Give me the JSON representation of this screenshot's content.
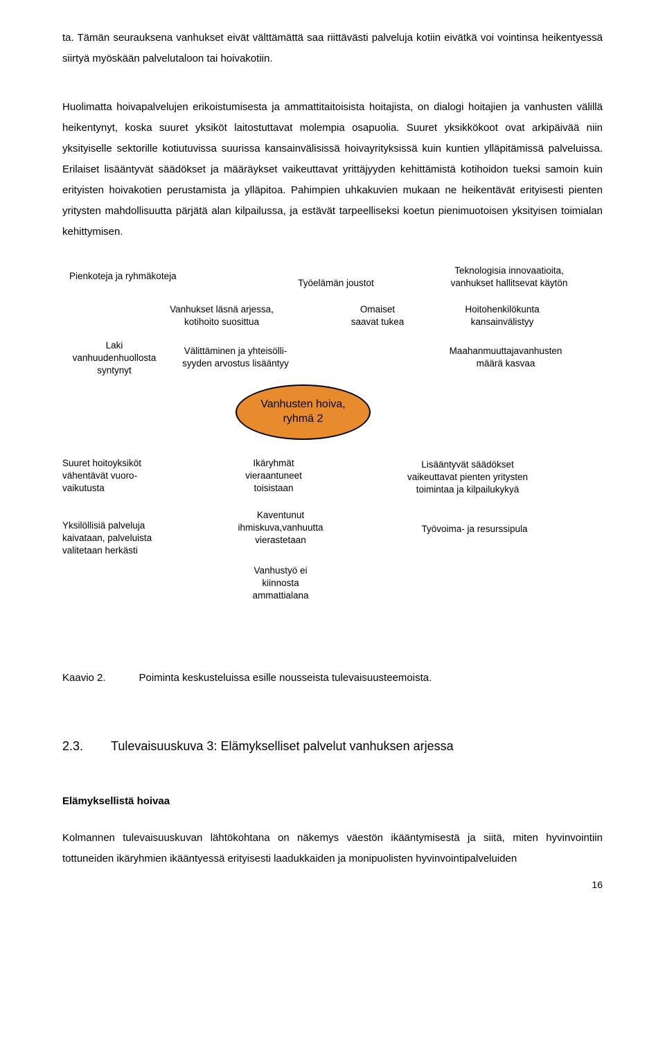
{
  "paragraph1": "ta. Tämän seurauksena vanhukset eivät välttämättä saa riittävästi palveluja kotiin eivätkä voi vointinsa heikentyessä siirtyä myöskään palvelutaloon tai hoivakotiin.",
  "paragraph2": "Huolimatta hoivapalvelujen erikoistumisesta ja ammattitaitoisista hoitajista, on dialogi hoitajien ja vanhusten välillä heikentynyt, koska suuret yksiköt laitostuttavat molempia osapuolia. Suuret yksikkökoot ovat arkipäivää niin yksityiselle sektorille kotiutuvissa suurissa kansainvälisissä hoivayrityksissä kuin kuntien ylläpitämissä palveluissa. Erilaiset lisääntyvät säädökset ja määräykset vaikeuttavat yrittäjyyden kehittämistä kotihoidon tueksi samoin kuin erityisten hoivakotien perustamista ja ylläpitoa. Pahimpien uhkakuvien mukaan ne heikentävät erityisesti pienten yritysten mahdollisuutta pärjätä alan kilpailussa, ja estävät tarpeelliseksi koetun pienimuotoisen yksityisen toimialan kehittymisen.",
  "diagram": {
    "center": "Vanhusten hoiva,\nryhmä 2",
    "ellipse_fill": "#e88b2d",
    "ellipse_border": "#000000",
    "top_row1": {
      "c1": "Pienkoteja ja ryhmäkoteja",
      "c2": "Työelämän joustot",
      "c3": "Teknologisia innovaatioita,\nvanhukset hallitsevat käytön"
    },
    "top_row2": {
      "c1": "Vanhukset läsnä arjessa,\nkotihoito suosittua",
      "c2": "Omaiset\nsaavat tukea",
      "c3": "Hoitohenkilökunta\nkansainvälistyy"
    },
    "top_row3": {
      "c1": "Laki\nvanhuudenhuollosta\nsyntynyt",
      "c2": "Välittäminen ja yhteisölli-\nsyyden arvostus lisääntyy",
      "c3": "Maahanmuuttajavanhusten\nmäärä kasvaa"
    },
    "bot_row1": {
      "c1": "Suuret hoitoyksiköt\nvähentävät vuoro-\nvaikutusta",
      "c2": "Ikäryhmät\nvieraantuneet\ntoisistaan",
      "c3": "Lisääntyvät säädökset\nvaikeuttavat pienten yritysten\ntoimintaa ja kilpailukykyä"
    },
    "bot_row2": {
      "c1": "Yksilöllisiä palveluja\nkaivataan, palveluista\nvalitetaan herkästi",
      "c2": "Kaventunut\nihmiskuva,vanhuutta\nvierastetaan",
      "c3": "Työvoima- ja resurssipula"
    },
    "bot_row3": {
      "c2": "Vanhustyö ei\nkiinnosta\nammattialana"
    }
  },
  "caption_label": "Kaavio 2.",
  "caption_text": "Poiminta keskusteluissa esille nousseista tulevaisuusteemoista.",
  "section_number": "2.3.",
  "section_title": "Tulevaisuuskuva 3: Elämykselliset palvelut vanhuksen arjessa",
  "subheading": "Elämyksellistä hoivaa",
  "paragraph3": "Kolmannen tulevaisuuskuvan lähtökohtana on näkemys väestön ikääntymisestä ja siitä, miten hyvinvointiin tottuneiden ikäryhmien ikääntyessä erityisesti laadukkaiden ja monipuolisten hyvinvointipalveluiden",
  "page_number": "16"
}
